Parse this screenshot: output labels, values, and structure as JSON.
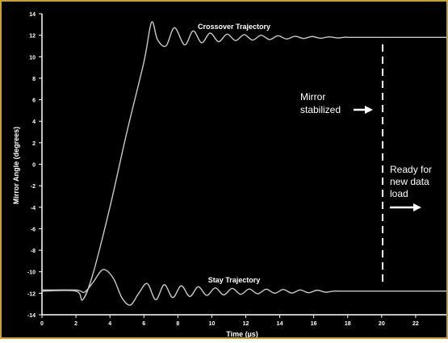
{
  "chart_data": {
    "type": "line",
    "xlabel": "Time (µs)",
    "ylabel": "Mirror Angle (degrees)",
    "xlim": [
      0,
      24
    ],
    "ylim": [
      -14,
      14
    ],
    "xticks": [
      0,
      2,
      4,
      6,
      8,
      10,
      12,
      14,
      16,
      18,
      20,
      22,
      24
    ],
    "yticks": [
      14,
      12,
      10,
      8,
      6,
      4,
      2,
      0,
      -2,
      -4,
      -6,
      -8,
      -10,
      -12,
      -14
    ],
    "grid": false,
    "series": [
      {
        "name": "Crossover Trajectory",
        "x": [
          0,
          2,
          2.4,
          3.0,
          4,
          5,
          6,
          6.45,
          6.8,
          7.3,
          7.8,
          8.4,
          8.9,
          9.4,
          9.9,
          10.4,
          10.9,
          11.4,
          11.9,
          12.4,
          12.9,
          13.4,
          13.9,
          14.4,
          14.9,
          15.4,
          15.9,
          16.4,
          16.9,
          17.4,
          17.9,
          18.5,
          24
        ],
        "y": [
          -11.8,
          -11.8,
          -12.6,
          -10.2,
          -4.0,
          3.0,
          9.5,
          13.2,
          11.6,
          11.0,
          12.7,
          11.1,
          12.4,
          11.3,
          12.2,
          11.4,
          12.1,
          11.5,
          12.05,
          11.55,
          12.0,
          11.6,
          11.95,
          11.65,
          11.9,
          11.7,
          11.88,
          11.72,
          11.85,
          11.75,
          11.82,
          11.8,
          11.8
        ]
      },
      {
        "name": "Stay Trajectory",
        "x": [
          0,
          2,
          2.5,
          3.0,
          3.6,
          4.2,
          4.7,
          5.2,
          5.7,
          6.2,
          6.7,
          7.2,
          7.7,
          8.2,
          8.7,
          9.2,
          9.7,
          10.2,
          10.7,
          11.2,
          11.7,
          12.2,
          12.7,
          13.2,
          13.7,
          14.2,
          14.7,
          15.2,
          15.7,
          16.2,
          16.7,
          17.2,
          18.0,
          24
        ],
        "y": [
          -11.7,
          -11.7,
          -11.9,
          -11.0,
          -9.8,
          -10.6,
          -12.4,
          -13.1,
          -12.0,
          -11.1,
          -12.6,
          -11.2,
          -12.4,
          -11.3,
          -12.3,
          -11.4,
          -12.2,
          -11.5,
          -12.15,
          -11.55,
          -12.1,
          -11.6,
          -12.05,
          -11.62,
          -12.0,
          -11.65,
          -11.98,
          -11.7,
          -11.95,
          -11.72,
          -11.9,
          -11.8,
          -11.8,
          -11.8
        ]
      }
    ],
    "annotations": {
      "crossover_label": "Crossover Trajectory",
      "stay_label": "Stay Trajectory",
      "mirror_stabilized": [
        "Mirror",
        "stabilized"
      ],
      "ready_for_data": [
        "Ready for",
        "new data",
        "load"
      ],
      "stabilized_time": 20
    },
    "colors": {
      "background": "#000000",
      "border": "#c9a227",
      "trace": "#c8c8c8",
      "text": "#ffffff"
    }
  }
}
